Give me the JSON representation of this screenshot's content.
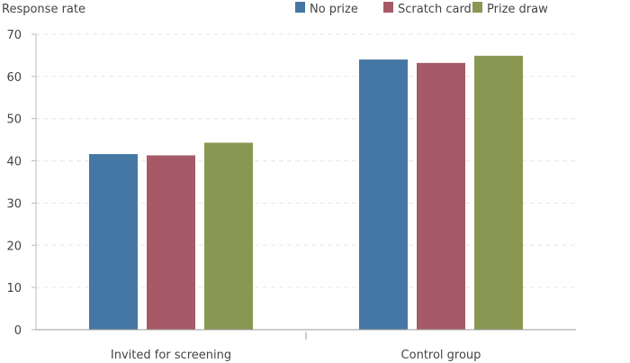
{
  "chart_data": {
    "type": "bar",
    "ylabel": "Response rate",
    "categories": [
      "Invited for screening",
      "Control group"
    ],
    "series": [
      {
        "name": "No prize",
        "color": "#4577a5",
        "values": [
          41.6,
          64.0
        ]
      },
      {
        "name": "Scratch card",
        "color": "#a65a67",
        "values": [
          41.3,
          63.2
        ]
      },
      {
        "name": "Prize draw",
        "color": "#8a9752",
        "values": [
          44.3,
          64.9
        ]
      }
    ],
    "ylim": [
      0,
      70
    ],
    "yticks": [
      0,
      10,
      20,
      30,
      40,
      50,
      60,
      70
    ],
    "grid": true,
    "legend": "top-right"
  }
}
